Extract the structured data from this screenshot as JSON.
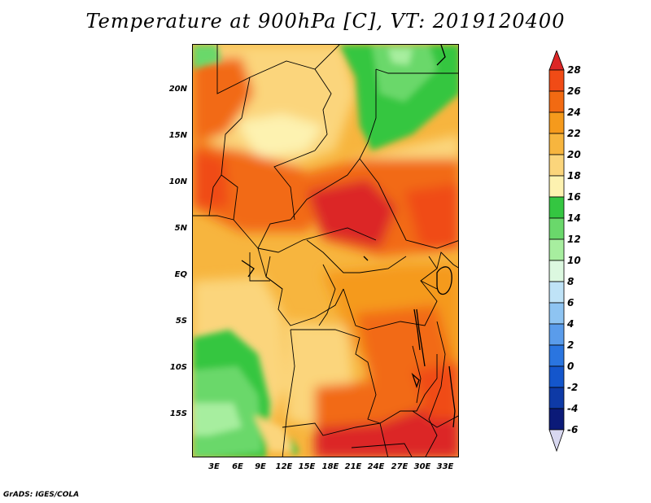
{
  "title": "Temperature at 900hPa [C], VT: 2019120400",
  "credit": "GrADS: IGES/COLA",
  "map": {
    "lat_labels": [
      "20N",
      "15N",
      "10N",
      "5N",
      "EQ",
      "5S",
      "10S",
      "15S"
    ],
    "lon_labels": [
      "3E",
      "6E",
      "9E",
      "12E",
      "15E",
      "18E",
      "21E",
      "24E",
      "27E",
      "30E",
      "33E"
    ]
  },
  "colorbar": {
    "labels": [
      "28",
      "26",
      "24",
      "22",
      "20",
      "18",
      "16",
      "14",
      "12",
      "10",
      "8",
      "6",
      "4",
      "2",
      "0",
      "-2",
      "-4",
      "-6"
    ],
    "colors": [
      "#dc2626",
      "#f04b16",
      "#f26a12",
      "#f59a1c",
      "#f7b53e",
      "#fbd57b",
      "#fdf2b0",
      "#34c641",
      "#6ad86b",
      "#a7ee9f",
      "#dcf8e0",
      "#bfe3f7",
      "#8ec4f2",
      "#5a9ceb",
      "#2a75e0",
      "#1456cc",
      "#0e3aa6",
      "#0b1a78"
    ]
  }
}
